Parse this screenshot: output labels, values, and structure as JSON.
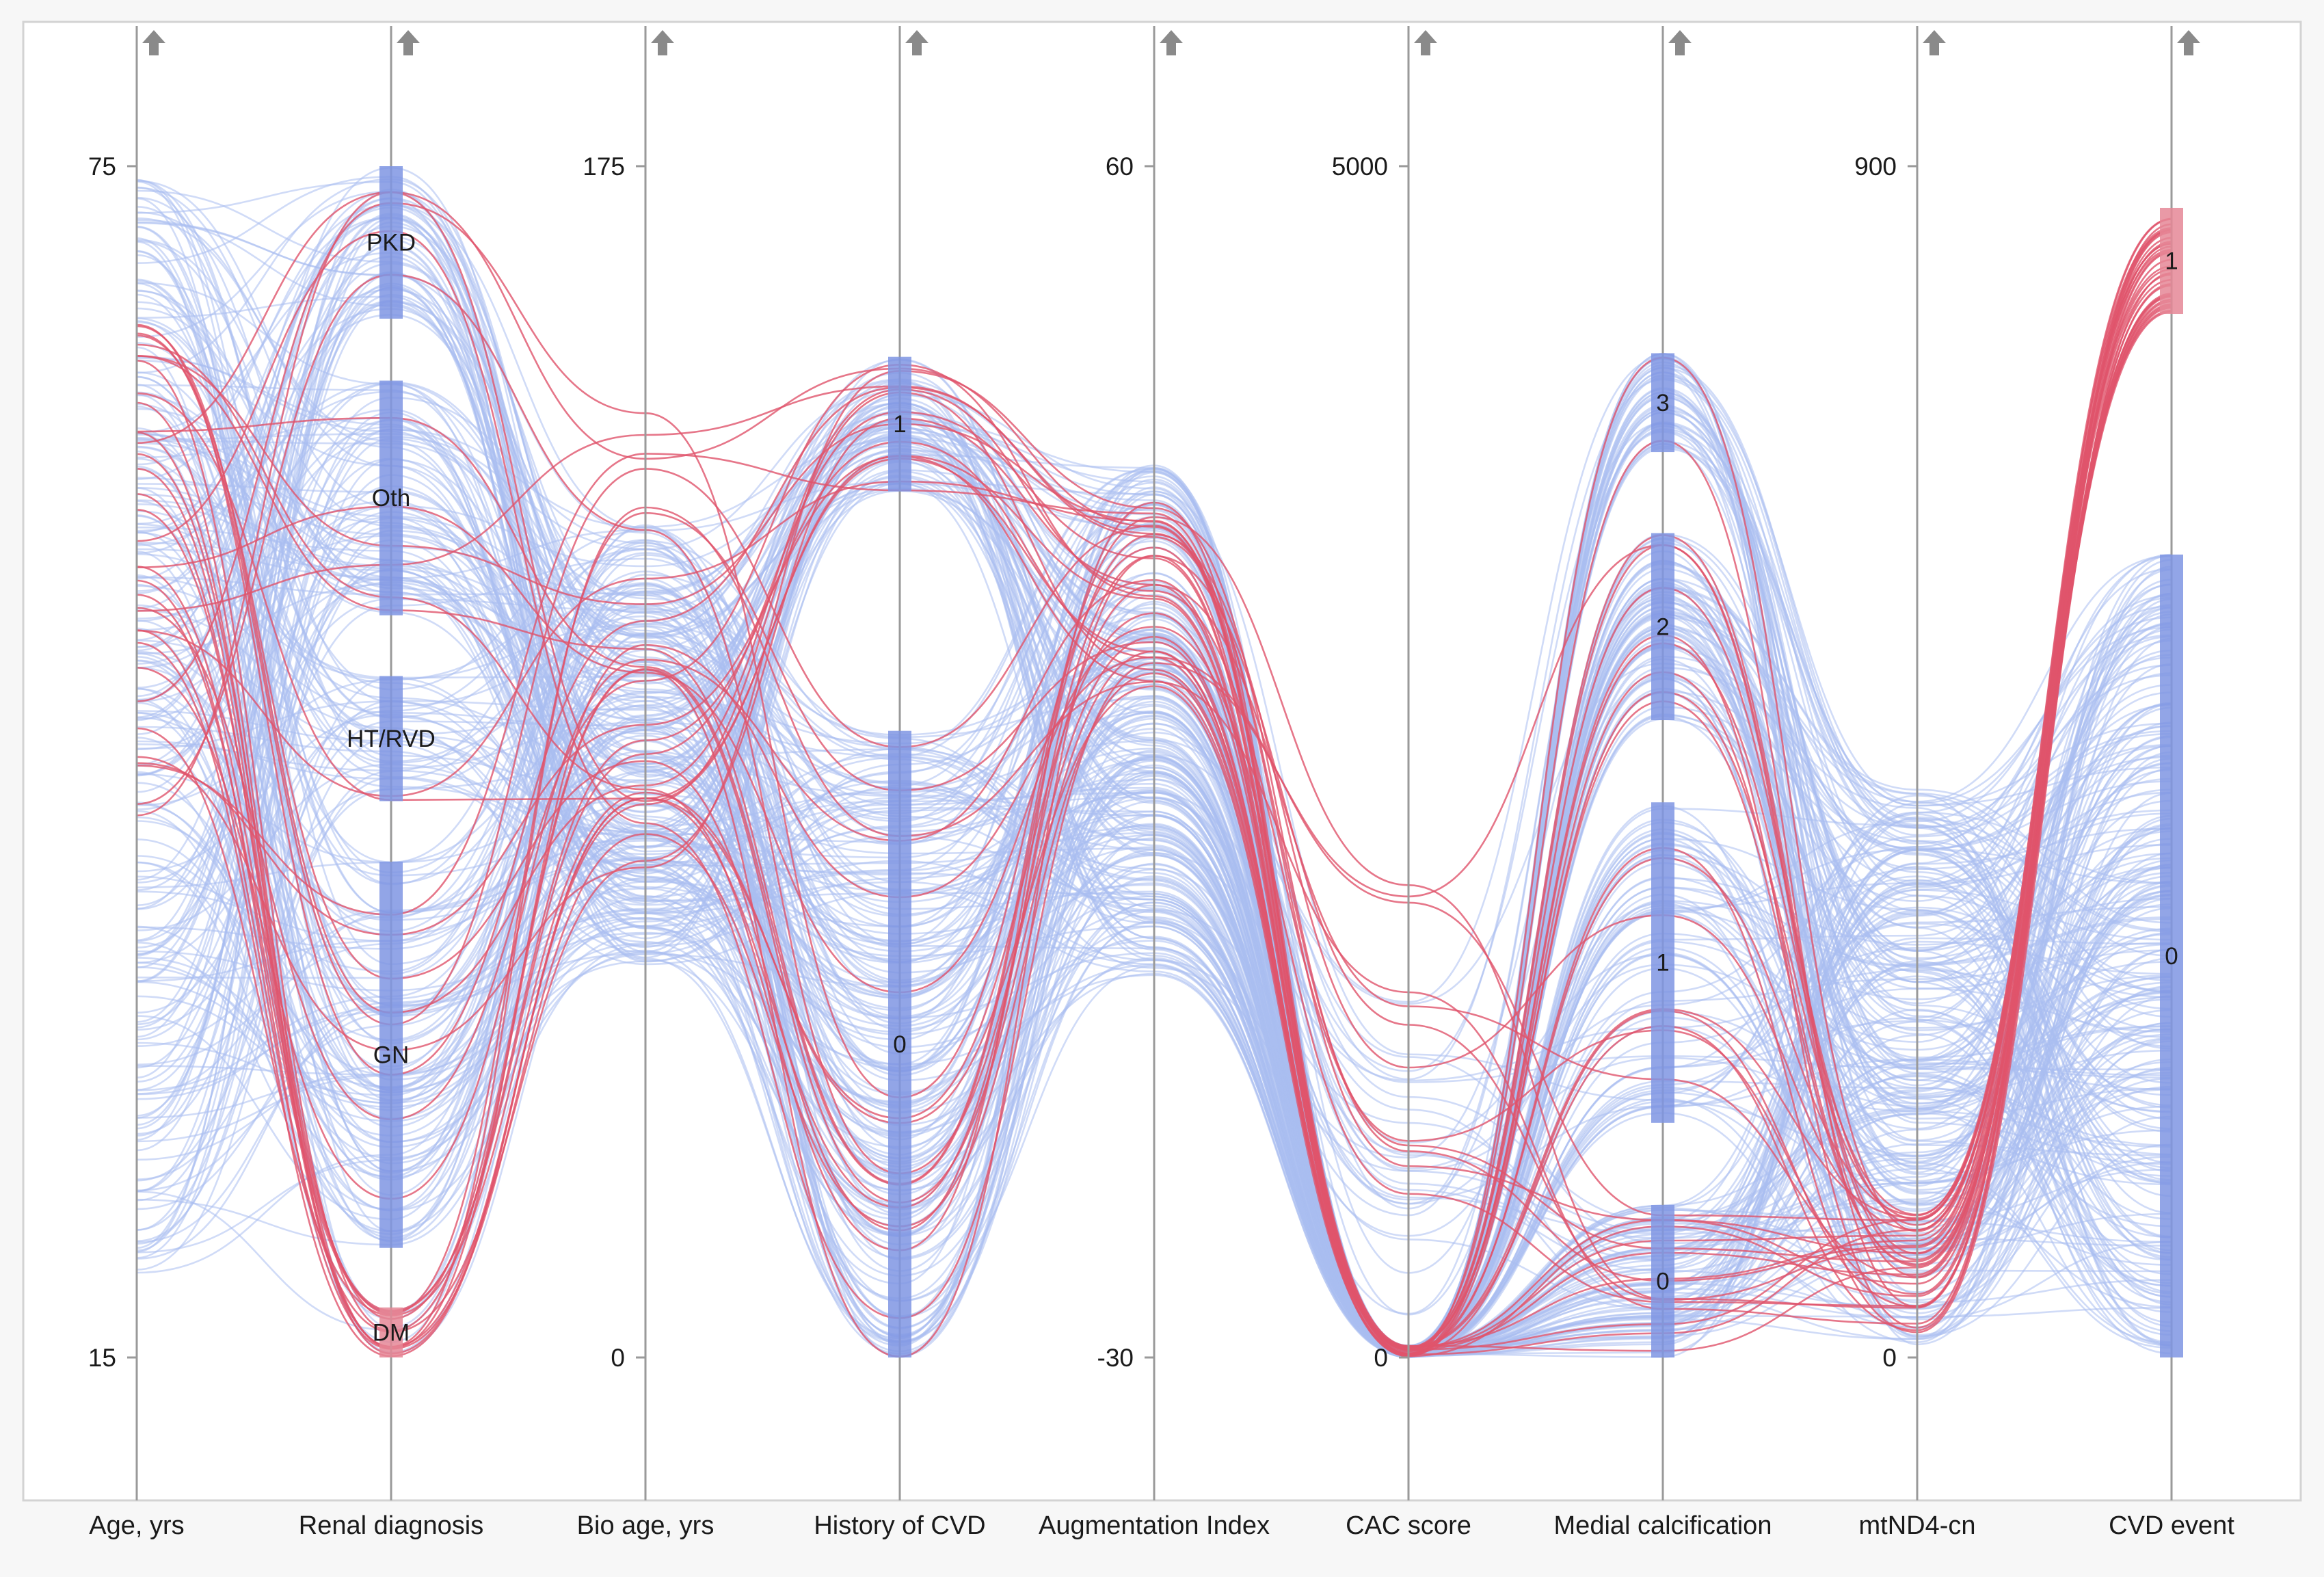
{
  "chart_data": {
    "type": "parallel-coordinates",
    "title": "",
    "colors": {
      "no_event": "#a9bdf0",
      "event": "#e0546b",
      "axis": "#9a9a9a",
      "category_bar_blue": "#7f95e3",
      "category_bar_red": "#e58796",
      "arrow": "#8a8a8a"
    },
    "axes": [
      {
        "name": "Age, yrs",
        "type": "numeric",
        "min": 15,
        "max": 75,
        "tick_labels": [
          "75",
          "15"
        ]
      },
      {
        "name": "Renal diagnosis",
        "type": "categorical",
        "categories": [
          {
            "label": "PKD",
            "from": 0.872,
            "to": 1.0
          },
          {
            "label": "Oth",
            "from": 0.623,
            "to": 0.82
          },
          {
            "label": "HT/RVD",
            "from": 0.467,
            "to": 0.572
          },
          {
            "label": "GN",
            "from": 0.092,
            "to": 0.416
          },
          {
            "label": "DM",
            "from": 0.0,
            "to": 0.042
          }
        ]
      },
      {
        "name": "Bio age, yrs",
        "type": "numeric",
        "min": 0,
        "max": 175,
        "tick_labels": [
          "175",
          "0"
        ]
      },
      {
        "name": "History of CVD",
        "type": "categorical",
        "categories": [
          {
            "label": "1",
            "from": 0.727,
            "to": 0.84
          },
          {
            "label": "0",
            "from": 0.0,
            "to": 0.526
          }
        ]
      },
      {
        "name": "Augmentation Index",
        "type": "numeric",
        "min": -30,
        "max": 60,
        "tick_labels": [
          "60",
          "-30"
        ]
      },
      {
        "name": "CAC score",
        "type": "numeric",
        "min": 0,
        "max": 5000,
        "tick_labels": [
          "5000",
          "0"
        ]
      },
      {
        "name": "Medial calcification",
        "type": "categorical",
        "categories": [
          {
            "label": "3",
            "from": 0.76,
            "to": 0.843
          },
          {
            "label": "2",
            "from": 0.535,
            "to": 0.692
          },
          {
            "label": "1",
            "from": 0.197,
            "to": 0.466
          },
          {
            "label": "0",
            "from": 0.0,
            "to": 0.128
          }
        ]
      },
      {
        "name": "mtND4-cn",
        "type": "numeric",
        "min": 0,
        "max": 900,
        "tick_labels": [
          "900",
          "0"
        ]
      },
      {
        "name": "CVD event",
        "type": "categorical",
        "categories": [
          {
            "label": "1",
            "from": 0.876,
            "to": 0.965
          },
          {
            "label": "0",
            "from": 0.0,
            "to": 0.674
          }
        ]
      }
    ],
    "series": [
      {
        "name": "CVD event = 1",
        "count": 35
      },
      {
        "name": "CVD event = 0",
        "count": 260
      }
    ]
  }
}
